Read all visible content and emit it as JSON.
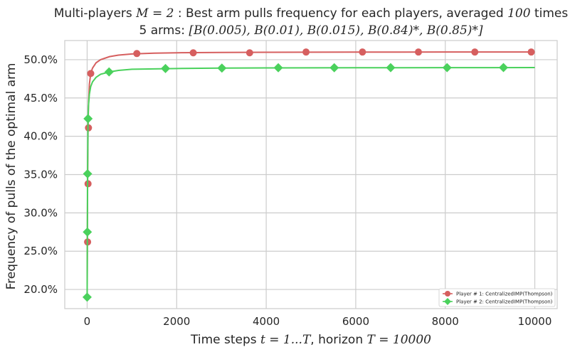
{
  "chart_data": {
    "type": "line",
    "title_line1_prefix": "Multi-players ",
    "title_line1_math": "M = 2",
    "title_line1_mid": " : Best arm pulls frequency for each players, averaged ",
    "title_line1_math2": "100",
    "title_line1_suffix": " times",
    "title_line2_prefix": "5 arms: ",
    "title_line2_math": "[B(0.005), B(0.01), B(0.015), B(0.84)*, B(0.85)*]",
    "xlabel_prefix": "Time steps ",
    "xlabel_math1": "t = 1...T",
    "xlabel_mid": ", horizon ",
    "xlabel_math2": "T = 10000",
    "ylabel": "Frequency of pulls of the optimal arm",
    "xlim": [
      -500,
      10500
    ],
    "ylim": [
      0.175,
      0.525
    ],
    "xticks": [
      0,
      2000,
      4000,
      6000,
      8000,
      10000
    ],
    "xtick_labels": [
      "0",
      "2000",
      "4000",
      "6000",
      "8000",
      "10000"
    ],
    "yticks": [
      0.2,
      0.25,
      0.3,
      0.35,
      0.4,
      0.45,
      0.5
    ],
    "ytick_labels": [
      "20.0%",
      "25.0%",
      "30.0%",
      "35.0%",
      "40.0%",
      "45.0%",
      "50.0%"
    ],
    "grid": true,
    "legend_position": "bottom-right",
    "series": [
      {
        "name": "Player # 1: CentralizedIMP(Thompson)",
        "color": "#d65f5f",
        "marker": "circle",
        "x": [
          0,
          5,
          10,
          20,
          30,
          50,
          80,
          120,
          200,
          300,
          500,
          700,
          1000,
          1500,
          2000,
          3000,
          4000,
          5000,
          6000,
          7000,
          8000,
          9000,
          10000
        ],
        "y": [
          0.19,
          0.262,
          0.338,
          0.411,
          0.44,
          0.468,
          0.482,
          0.489,
          0.496,
          0.5,
          0.504,
          0.506,
          0.5075,
          0.5085,
          0.509,
          0.5095,
          0.5097,
          0.5098,
          0.5099,
          0.5099,
          0.51,
          0.51,
          0.51
        ],
        "marker_x": [
          10,
          20,
          30,
          80,
          1110,
          2370,
          3630,
          4890,
          6150,
          7400,
          8660,
          9920
        ],
        "marker_y": [
          0.262,
          0.338,
          0.411,
          0.482,
          0.508,
          0.509,
          0.509,
          0.51,
          0.51,
          0.51,
          0.51,
          0.51
        ]
      },
      {
        "name": "Player # 2: CentralizedIMP(Thompson)",
        "color": "#4ad15c",
        "marker": "diamond",
        "x": [
          0,
          5,
          10,
          20,
          30,
          50,
          80,
          120,
          200,
          300,
          500,
          700,
          1000,
          1500,
          2000,
          3000,
          4000,
          5000,
          6000,
          7000,
          8000,
          9000,
          10000
        ],
        "y": [
          0.19,
          0.275,
          0.351,
          0.423,
          0.44,
          0.455,
          0.465,
          0.471,
          0.477,
          0.481,
          0.484,
          0.486,
          0.4875,
          0.488,
          0.4885,
          0.489,
          0.4892,
          0.4894,
          0.4895,
          0.4895,
          0.4896,
          0.4896,
          0.4897
        ],
        "marker_x": [
          0,
          5,
          10,
          20,
          490,
          1750,
          3010,
          4270,
          5520,
          6780,
          8040,
          9300
        ],
        "marker_y": [
          0.19,
          0.275,
          0.351,
          0.423,
          0.484,
          0.4885,
          0.489,
          0.4895,
          0.4895,
          0.4896,
          0.4896,
          0.4897
        ]
      }
    ]
  }
}
